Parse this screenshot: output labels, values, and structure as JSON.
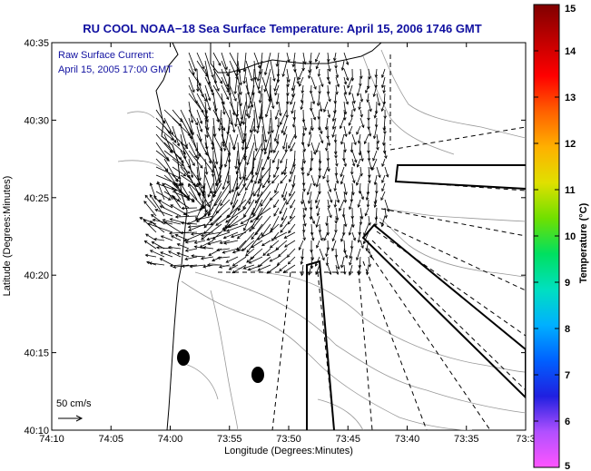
{
  "title": "RU COOL  NOAA−18  Sea Surface Temperature:  April 15, 2006 1746 GMT",
  "annotation": {
    "line1": "Raw Surface Current:",
    "line2": "April 15, 2005 17:00 GMT"
  },
  "scale_label": "50 cm/s",
  "xlabel": "Longitude (Degrees:Minutes)",
  "ylabel": "Latitude (Degrees:Minutes)",
  "x_ticks": [
    "74:10",
    "74:05",
    "74:00",
    "73:55",
    "73:50",
    "73:45",
    "73:40",
    "73:35",
    "73:3"
  ],
  "y_ticks": [
    "40:35",
    "40:30",
    "40:25",
    "40:20",
    "40:15",
    "40:10"
  ],
  "colorbar": {
    "label": "Temperature (°C)",
    "ticks": [
      "15",
      "14",
      "13",
      "12",
      "11",
      "10",
      "9",
      "8",
      "7",
      "6",
      "5"
    ],
    "range": [
      5,
      15
    ],
    "colors": [
      "#ff55ff",
      "#b050ff",
      "#2020e0",
      "#0060ff",
      "#00b0ff",
      "#00e0c0",
      "#00e060",
      "#70e000",
      "#e0e000",
      "#ffb000",
      "#ff6000",
      "#ff0000",
      "#c00000",
      "#800000"
    ]
  },
  "colors": {
    "title": "#1010a0",
    "contour": "#999999",
    "coast": "#000000"
  },
  "markers": [
    "buoy-1",
    "buoy-2"
  ]
}
